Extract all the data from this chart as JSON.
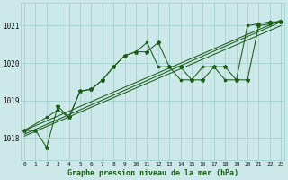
{
  "bg_color": "#cce8e8",
  "grid_color": "#99cccc",
  "line_color": "#1a5c1a",
  "x_ticks": [
    0,
    1,
    2,
    3,
    4,
    5,
    6,
    7,
    8,
    9,
    10,
    11,
    12,
    13,
    14,
    15,
    16,
    17,
    18,
    19,
    20,
    21,
    22,
    23
  ],
  "y_ticks": [
    1018,
    1019,
    1020,
    1021
  ],
  "ylim": [
    1017.4,
    1021.6
  ],
  "xlim": [
    -0.3,
    23.3
  ],
  "xlabel": "Graphe pression niveau de la mer (hPa)",
  "series1_x": [
    0,
    1,
    2,
    3,
    4,
    5,
    6,
    7,
    8,
    9,
    10,
    11,
    12,
    13,
    14,
    15,
    16,
    17,
    18,
    19,
    20,
    21,
    22,
    23
  ],
  "series1_y": [
    1018.2,
    1018.2,
    1017.75,
    1018.85,
    1018.55,
    1019.25,
    1019.3,
    1019.55,
    1019.9,
    1020.2,
    1020.3,
    1020.3,
    1020.55,
    1019.9,
    1019.9,
    1019.55,
    1019.55,
    1019.9,
    1019.9,
    1019.55,
    1019.55,
    1021.0,
    1021.05,
    1021.1
  ],
  "series2_x": [
    0,
    2,
    3,
    4,
    5,
    6,
    7,
    8,
    9,
    10,
    11,
    12,
    13,
    14,
    15,
    16,
    17,
    18,
    19,
    20,
    21,
    22,
    23
  ],
  "series2_y": [
    1018.2,
    1018.55,
    1018.75,
    1018.55,
    1019.25,
    1019.3,
    1019.55,
    1019.9,
    1020.2,
    1020.3,
    1020.55,
    1019.9,
    1019.9,
    1019.55,
    1019.55,
    1019.9,
    1019.9,
    1019.55,
    1019.55,
    1021.0,
    1021.05,
    1021.1,
    1021.1
  ],
  "trend_lines": [
    {
      "x": [
        0,
        23
      ],
      "y": [
        1018.05,
        1021.0
      ]
    },
    {
      "x": [
        0,
        23
      ],
      "y": [
        1018.1,
        1021.1
      ]
    },
    {
      "x": [
        0,
        23
      ],
      "y": [
        1018.2,
        1021.15
      ]
    }
  ]
}
